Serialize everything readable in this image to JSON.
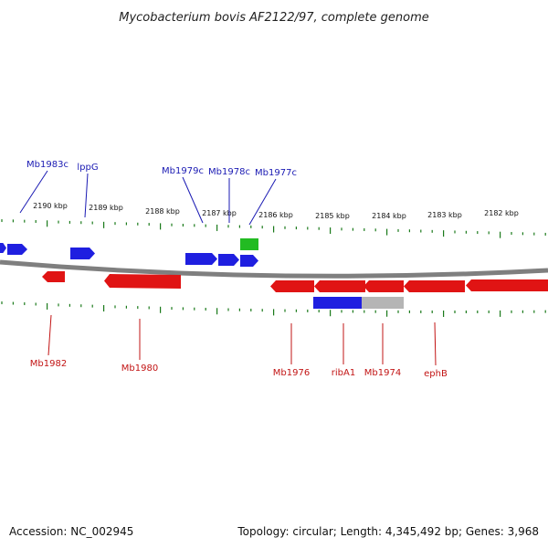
{
  "title": "Mycobacterium bovis AF2122/97, complete genome",
  "footer": {
    "accession": "Accession: NC_002945",
    "info": "Topology: circular; Length: 4,345,492 bp; Genes: 3,968"
  },
  "colors": {
    "forward": "#1f1fe0",
    "reverse": "#e01414",
    "rna": "#22bb22",
    "other": "#b5b5b5",
    "backbone": "#7f7f7f",
    "ticks": "#1a7a1a",
    "fwd_label": "#1a1ab3",
    "rev_label": "#c21414"
  },
  "scale": {
    "labels": [
      "2190 kbp",
      "2189 kbp",
      "2188 kbp",
      "2187 kbp",
      "2186 kbp",
      "2185 kbp",
      "2184 kbp",
      "2183 kbp",
      "2182 kbp"
    ]
  },
  "genes": {
    "forward": [
      "Mb1983c",
      "lppG",
      "Mb1979c",
      "Mb1978c",
      "Mb1977c"
    ],
    "reverse": [
      "Mb1982",
      "Mb1980",
      "Mb1976",
      "ribA1",
      "Mb1974",
      "ephB"
    ]
  }
}
